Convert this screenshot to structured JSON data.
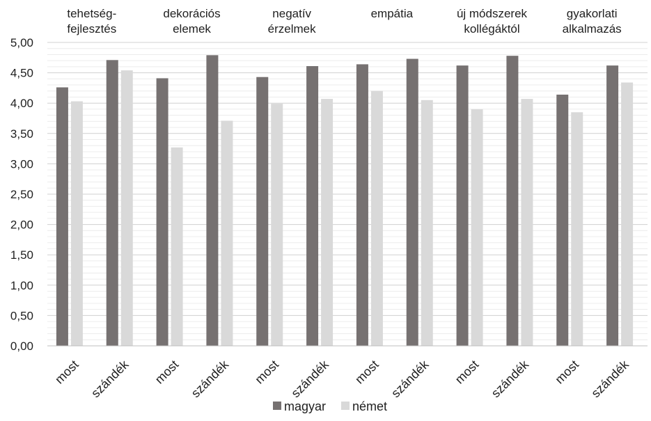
{
  "chart_data": {
    "type": "bar",
    "title": "",
    "xlabel": "",
    "ylabel": "",
    "ylim": [
      0,
      5
    ],
    "ytick_step": 0.5,
    "ytick_labels": [
      "0,00",
      "0,50",
      "1,00",
      "1,50",
      "2,00",
      "2,50",
      "3,00",
      "3,50",
      "4,00",
      "4,50",
      "5,00"
    ],
    "grid": true,
    "legend_position": "bottom",
    "groups": [
      {
        "label_lines": [
          "tehetség-",
          "fejlesztés"
        ]
      },
      {
        "label_lines": [
          "dekorációs",
          "elemek"
        ]
      },
      {
        "label_lines": [
          "negatív",
          "érzelmek"
        ]
      },
      {
        "label_lines": [
          "empátia"
        ]
      },
      {
        "label_lines": [
          "új módszerek",
          "kollégáktól"
        ]
      },
      {
        "label_lines": [
          "gyakorlati",
          "alkalmazás"
        ]
      }
    ],
    "categories": [
      "most",
      "szándék",
      "most",
      "szándék",
      "most",
      "szándék",
      "most",
      "szándék",
      "most",
      "szándék",
      "most",
      "szándék"
    ],
    "series": [
      {
        "name": "magyar",
        "color": "#767171",
        "values": [
          4.26,
          4.71,
          4.41,
          4.79,
          4.43,
          4.61,
          4.64,
          4.73,
          4.62,
          4.78,
          4.14,
          4.62
        ]
      },
      {
        "name": "német",
        "color": "#d9d9d9",
        "values": [
          4.03,
          4.54,
          3.27,
          3.71,
          3.99,
          4.07,
          4.2,
          4.05,
          3.9,
          4.07,
          3.85,
          4.34
        ]
      }
    ]
  }
}
